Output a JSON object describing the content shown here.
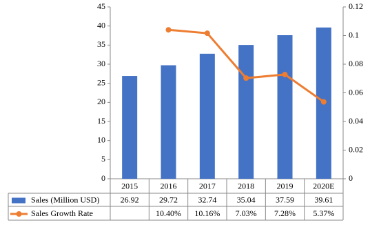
{
  "chart_data": {
    "type": "bar_line_table",
    "categories": [
      "2015",
      "2016",
      "2017",
      "2018",
      "2019",
      "2020E"
    ],
    "series": [
      {
        "name": "Sales (Million USD)",
        "color": "#4472c4",
        "values": [
          26.92,
          29.72,
          32.74,
          35.04,
          37.59,
          39.61
        ]
      },
      {
        "name": "Sales Growth Rate",
        "color": "#ed7d31",
        "axis": "y2",
        "values": [
          null,
          0.104,
          0.1016,
          0.0703,
          0.0728,
          0.0537
        ],
        "value_labels": [
          null,
          "10.40%",
          "10.16%",
          "7.03%",
          "7.28%",
          "5.37%"
        ]
      }
    ],
    "ylim": [
      0,
      45
    ],
    "yticks": [
      0,
      5,
      10,
      15,
      20,
      25,
      30,
      35,
      40,
      45
    ],
    "y2lim": [
      0,
      0.12
    ],
    "y2ticks": [
      0,
      0.02,
      0.04,
      0.06,
      0.08,
      0.1,
      0.12
    ]
  }
}
